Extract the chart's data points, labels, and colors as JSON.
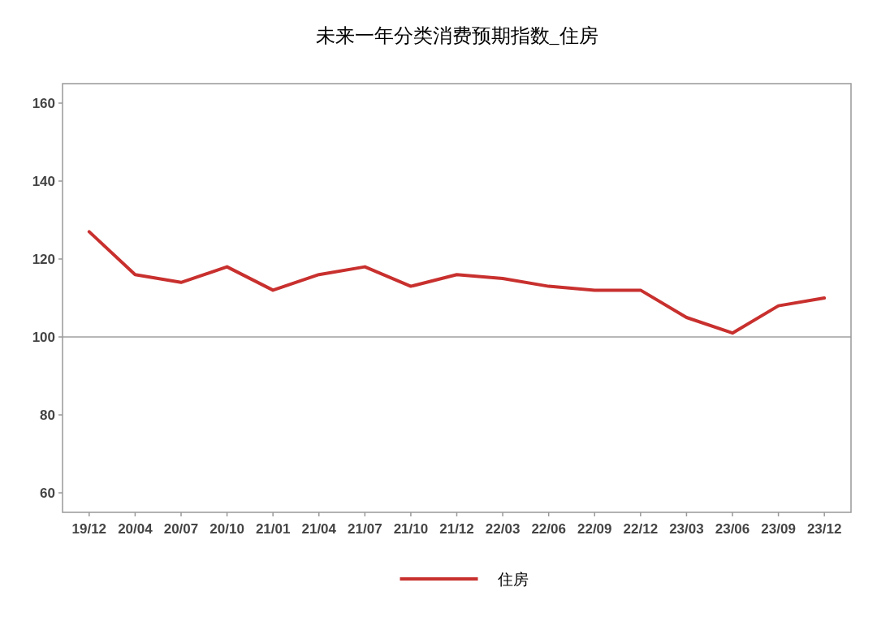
{
  "chart_data": {
    "type": "line",
    "title": "未来一年分类消费预期指数_住房",
    "categories": [
      "19/12",
      "20/04",
      "20/07",
      "20/10",
      "21/01",
      "21/04",
      "21/07",
      "21/10",
      "21/12",
      "22/03",
      "22/06",
      "22/09",
      "22/12",
      "23/03",
      "23/06",
      "23/09",
      "23/12"
    ],
    "series": [
      {
        "name": "住房",
        "color": "#c8302e",
        "values": [
          127,
          116,
          114,
          118,
          112,
          116,
          118,
          113,
          116,
          115,
          113,
          112,
          112,
          105,
          101,
          108,
          110
        ]
      }
    ],
    "ylim": [
      55,
      165
    ],
    "yticks": [
      60,
      80,
      100,
      120,
      140,
      160
    ],
    "ref_lines": [
      {
        "axis": "y",
        "value": 100,
        "color": "#a0a0a0"
      }
    ],
    "legend": "bottom"
  }
}
